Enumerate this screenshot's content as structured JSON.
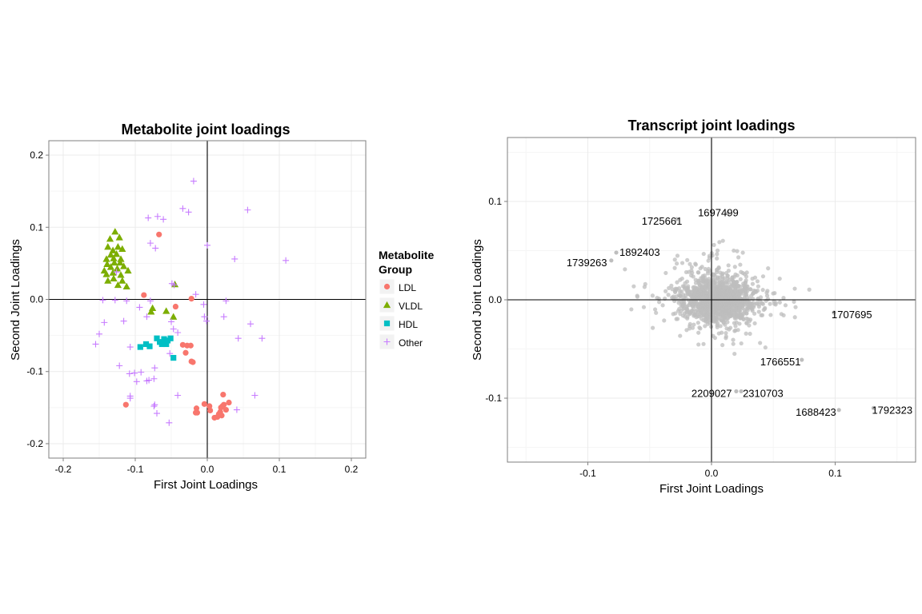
{
  "colors": {
    "LDL": "#F8766D",
    "VLDL": "#7CAE00",
    "HDL": "#00BFC4",
    "Other": "#C77CFF",
    "transcript": "#BEBEBE",
    "grid": "#EBEBEB",
    "panel_border": "#7F7F7F"
  },
  "chart_data": [
    {
      "type": "scatter",
      "title": "Metabolite joint loadings",
      "xlabel": "First Joint Loadings",
      "ylabel": "Second Joint Loadings",
      "xlim": [
        -0.22,
        0.22
      ],
      "ylim": [
        -0.22,
        0.22
      ],
      "xticks": [
        -0.2,
        -0.1,
        0.0,
        0.1,
        0.2
      ],
      "yticks": [
        -0.2,
        -0.1,
        0.0,
        0.1,
        0.2
      ],
      "xtick_labels": [
        "-0.2",
        "-0.1",
        "0.0",
        "0.1",
        "0.2"
      ],
      "ytick_labels": [
        "-0.2",
        "-0.1",
        "0.0",
        "0.1",
        "0.2"
      ],
      "grid": true,
      "reference_lines": {
        "x": 0,
        "y": 0
      },
      "legend": {
        "title_lines": [
          "Metabolite",
          "Group"
        ],
        "position": "right",
        "entries": [
          {
            "label": "LDL",
            "shape": "circle",
            "color_key": "LDL"
          },
          {
            "label": "VLDL",
            "shape": "triangle",
            "color_key": "VLDL"
          },
          {
            "label": "HDL",
            "shape": "square",
            "color_key": "HDL"
          },
          {
            "label": "Other",
            "shape": "plus",
            "color_key": "Other"
          }
        ]
      },
      "series": [
        {
          "name": "LDL",
          "shape": "circle",
          "points": [
            [
              -0.067,
              0.09
            ],
            [
              -0.088,
              0.006
            ],
            [
              -0.022,
              0.001
            ],
            [
              -0.044,
              -0.01
            ],
            [
              -0.034,
              -0.063
            ],
            [
              -0.028,
              -0.064
            ],
            [
              -0.023,
              -0.064
            ],
            [
              -0.03,
              -0.074
            ],
            [
              -0.022,
              -0.086
            ],
            [
              -0.02,
              -0.087
            ],
            [
              -0.113,
              -0.146
            ],
            [
              -0.004,
              -0.145
            ],
            [
              0.003,
              -0.148
            ],
            [
              -0.015,
              -0.151
            ],
            [
              -0.014,
              -0.157
            ],
            [
              -0.016,
              -0.157
            ],
            [
              0.004,
              -0.154
            ],
            [
              0.019,
              -0.15
            ],
            [
              0.021,
              -0.148
            ],
            [
              0.023,
              -0.146
            ],
            [
              0.03,
              -0.143
            ],
            [
              0.026,
              -0.153
            ],
            [
              0.018,
              -0.156
            ],
            [
              0.016,
              -0.159
            ],
            [
              0.014,
              -0.163
            ],
            [
              0.01,
              -0.164
            ],
            [
              0.02,
              -0.161
            ],
            [
              0.022,
              -0.132
            ]
          ]
        },
        {
          "name": "VLDL",
          "shape": "triangle",
          "points": [
            [
              -0.128,
              0.094
            ],
            [
              -0.135,
              0.084
            ],
            [
              -0.122,
              0.086
            ],
            [
              -0.138,
              0.073
            ],
            [
              -0.131,
              0.068
            ],
            [
              -0.124,
              0.073
            ],
            [
              -0.118,
              0.07
            ],
            [
              -0.126,
              0.063
            ],
            [
              -0.134,
              0.062
            ],
            [
              -0.14,
              0.056
            ],
            [
              -0.13,
              0.057
            ],
            [
              -0.12,
              0.056
            ],
            [
              -0.139,
              0.049
            ],
            [
              -0.129,
              0.051
            ],
            [
              -0.121,
              0.051
            ],
            [
              -0.134,
              0.045
            ],
            [
              -0.125,
              0.043
            ],
            [
              -0.116,
              0.046
            ],
            [
              -0.143,
              0.04
            ],
            [
              -0.131,
              0.037
            ],
            [
              -0.14,
              0.035
            ],
            [
              -0.12,
              0.034
            ],
            [
              -0.13,
              0.029
            ],
            [
              -0.138,
              0.026
            ],
            [
              -0.118,
              0.026
            ],
            [
              -0.124,
              0.02
            ],
            [
              -0.11,
              0.04
            ],
            [
              -0.112,
              0.018
            ],
            [
              -0.076,
              -0.012
            ],
            [
              -0.057,
              -0.016
            ],
            [
              -0.047,
              -0.024
            ],
            [
              -0.078,
              -0.017
            ],
            [
              -0.045,
              0.021
            ]
          ]
        },
        {
          "name": "HDL",
          "shape": "square",
          "points": [
            [
              -0.093,
              -0.066
            ],
            [
              -0.085,
              -0.062
            ],
            [
              -0.08,
              -0.065
            ],
            [
              -0.07,
              -0.054
            ],
            [
              -0.066,
              -0.059
            ],
            [
              -0.06,
              -0.055
            ],
            [
              -0.055,
              -0.057
            ],
            [
              -0.051,
              -0.054
            ],
            [
              -0.063,
              -0.062
            ],
            [
              -0.057,
              -0.062
            ],
            [
              -0.047,
              -0.081
            ]
          ]
        },
        {
          "name": "Other",
          "shape": "plus",
          "points": [
            [
              -0.019,
              0.164
            ],
            [
              -0.082,
              0.113
            ],
            [
              -0.069,
              0.115
            ],
            [
              -0.061,
              0.111
            ],
            [
              -0.034,
              0.126
            ],
            [
              -0.026,
              0.121
            ],
            [
              0.056,
              0.124
            ],
            [
              -0.079,
              0.078
            ],
            [
              -0.072,
              0.071
            ],
            [
              0.038,
              0.056
            ],
            [
              0.109,
              0.054
            ],
            [
              0.0,
              0.075
            ],
            [
              -0.126,
              0.038
            ],
            [
              -0.046,
              0.02
            ],
            [
              -0.049,
              0.022
            ],
            [
              -0.145,
              -0.001
            ],
            [
              -0.128,
              -0.001
            ],
            [
              -0.112,
              -0.002
            ],
            [
              -0.079,
              -0.002
            ],
            [
              -0.016,
              0.007
            ],
            [
              -0.005,
              -0.007
            ],
            [
              0.026,
              -0.002
            ],
            [
              -0.004,
              -0.024
            ],
            [
              -0.001,
              -0.03
            ],
            [
              0.023,
              -0.024
            ],
            [
              -0.094,
              -0.011
            ],
            [
              -0.084,
              -0.024
            ],
            [
              -0.143,
              -0.032
            ],
            [
              -0.116,
              -0.03
            ],
            [
              -0.15,
              -0.048
            ],
            [
              -0.05,
              -0.031
            ],
            [
              -0.047,
              -0.041
            ],
            [
              -0.041,
              -0.046
            ],
            [
              -0.107,
              -0.066
            ],
            [
              -0.155,
              -0.062
            ],
            [
              -0.052,
              -0.075
            ],
            [
              0.06,
              -0.034
            ],
            [
              0.076,
              -0.054
            ],
            [
              0.043,
              -0.054
            ],
            [
              -0.108,
              -0.103
            ],
            [
              -0.101,
              -0.102
            ],
            [
              -0.092,
              -0.101
            ],
            [
              -0.081,
              -0.112
            ],
            [
              -0.084,
              -0.113
            ],
            [
              -0.074,
              -0.11
            ],
            [
              -0.098,
              -0.114
            ],
            [
              -0.073,
              -0.095
            ],
            [
              -0.107,
              -0.134
            ],
            [
              -0.107,
              -0.137
            ],
            [
              -0.041,
              -0.133
            ],
            [
              -0.073,
              -0.146
            ],
            [
              -0.074,
              -0.148
            ],
            [
              -0.07,
              -0.158
            ],
            [
              -0.053,
              -0.171
            ],
            [
              0.066,
              -0.133
            ],
            [
              0.041,
              -0.153
            ],
            [
              -0.122,
              -0.092
            ]
          ]
        }
      ]
    },
    {
      "type": "scatter",
      "title": "Transcript joint loadings",
      "xlabel": "First Joint Loadings",
      "ylabel": "Second Joint Loadings",
      "xlim": [
        -0.165,
        0.165
      ],
      "ylim": [
        -0.165,
        0.165
      ],
      "xticks": [
        -0.1,
        0.0,
        0.1
      ],
      "yticks": [
        -0.1,
        0.0,
        0.1
      ],
      "xtick_labels": [
        "-0.1",
        "0.0",
        "0.1"
      ],
      "ytick_labels": [
        "-0.1",
        "0.0",
        "0.1"
      ],
      "grid": true,
      "reference_lines": {
        "x": 0,
        "y": 0
      },
      "cloud": {
        "center": [
          0.005,
          0.0
        ],
        "sd": [
          0.014,
          0.011
        ],
        "count": 1400,
        "extent_x": [
          -0.07,
          0.08
        ],
        "extent_y": [
          -0.075,
          0.06
        ]
      },
      "labeled_points": [
        {
          "label": "1697499",
          "x": 0.013,
          "y": 0.088
        },
        {
          "label": "1725661",
          "x": -0.028,
          "y": 0.082
        },
        {
          "label": "1892403",
          "x": -0.077,
          "y": 0.048
        },
        {
          "label": "1739263",
          "x": -0.081,
          "y": 0.04
        },
        {
          "label": "1707695",
          "x": 0.099,
          "y": -0.013
        },
        {
          "label": "1766551",
          "x": 0.073,
          "y": -0.061
        },
        {
          "label": "2209027",
          "x": 0.02,
          "y": -0.093
        },
        {
          "label": "2310703",
          "x": 0.024,
          "y": -0.093
        },
        {
          "label": "1688423",
          "x": 0.103,
          "y": -0.112
        },
        {
          "label": "1792323",
          "x": 0.131,
          "y": -0.11
        }
      ]
    }
  ]
}
